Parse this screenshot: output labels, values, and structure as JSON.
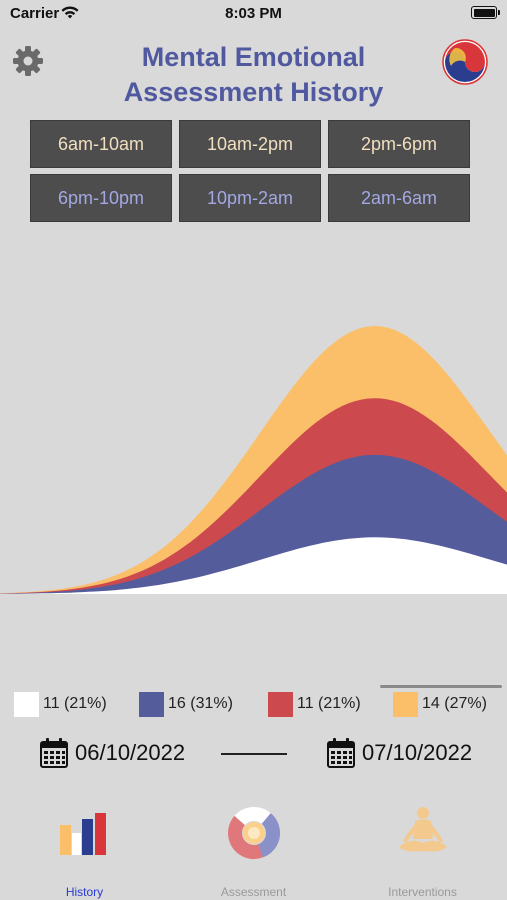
{
  "status_bar": {
    "carrier": "Carrier",
    "time": "8:03 PM"
  },
  "header": {
    "title": "Mental Emotional Assessment History"
  },
  "time_ranges": [
    {
      "label": "6am-10am",
      "state": "active"
    },
    {
      "label": "10am-2pm",
      "state": "active"
    },
    {
      "label": "2pm-6pm",
      "state": "active"
    },
    {
      "label": "6pm-10pm",
      "state": "inactive"
    },
    {
      "label": "10pm-2am",
      "state": "inactive"
    },
    {
      "label": "2am-6am",
      "state": "inactive"
    }
  ],
  "colors": {
    "white": "#ffffff",
    "blue": "#555c9c",
    "red": "#cc4a4e",
    "yellow": "#fbbf69",
    "title": "#5059a0",
    "background": "#d9d9d9"
  },
  "chart_data": {
    "type": "area",
    "stacked": true,
    "series": [
      {
        "color": "#ffffff",
        "count": 11,
        "percent": 21,
        "label": "11 (21%)"
      },
      {
        "color": "#555c9c",
        "count": 16,
        "percent": 31,
        "label": "16 (31%)"
      },
      {
        "color": "#cc4a4e",
        "count": 11,
        "percent": 21,
        "label": "11 (21%)"
      },
      {
        "color": "#fbbf69",
        "count": 14,
        "percent": 27,
        "label": "14 (27%)"
      }
    ]
  },
  "date_range": {
    "start": "06/10/2022",
    "end": "07/10/2022"
  },
  "tabs": [
    {
      "label": "History",
      "icon": "bar-chart-icon",
      "state": "active"
    },
    {
      "label": "Assessment",
      "icon": "donut-icon",
      "state": "inactive"
    },
    {
      "label": "Interventions",
      "icon": "meditation-icon",
      "state": "inactive"
    }
  ]
}
